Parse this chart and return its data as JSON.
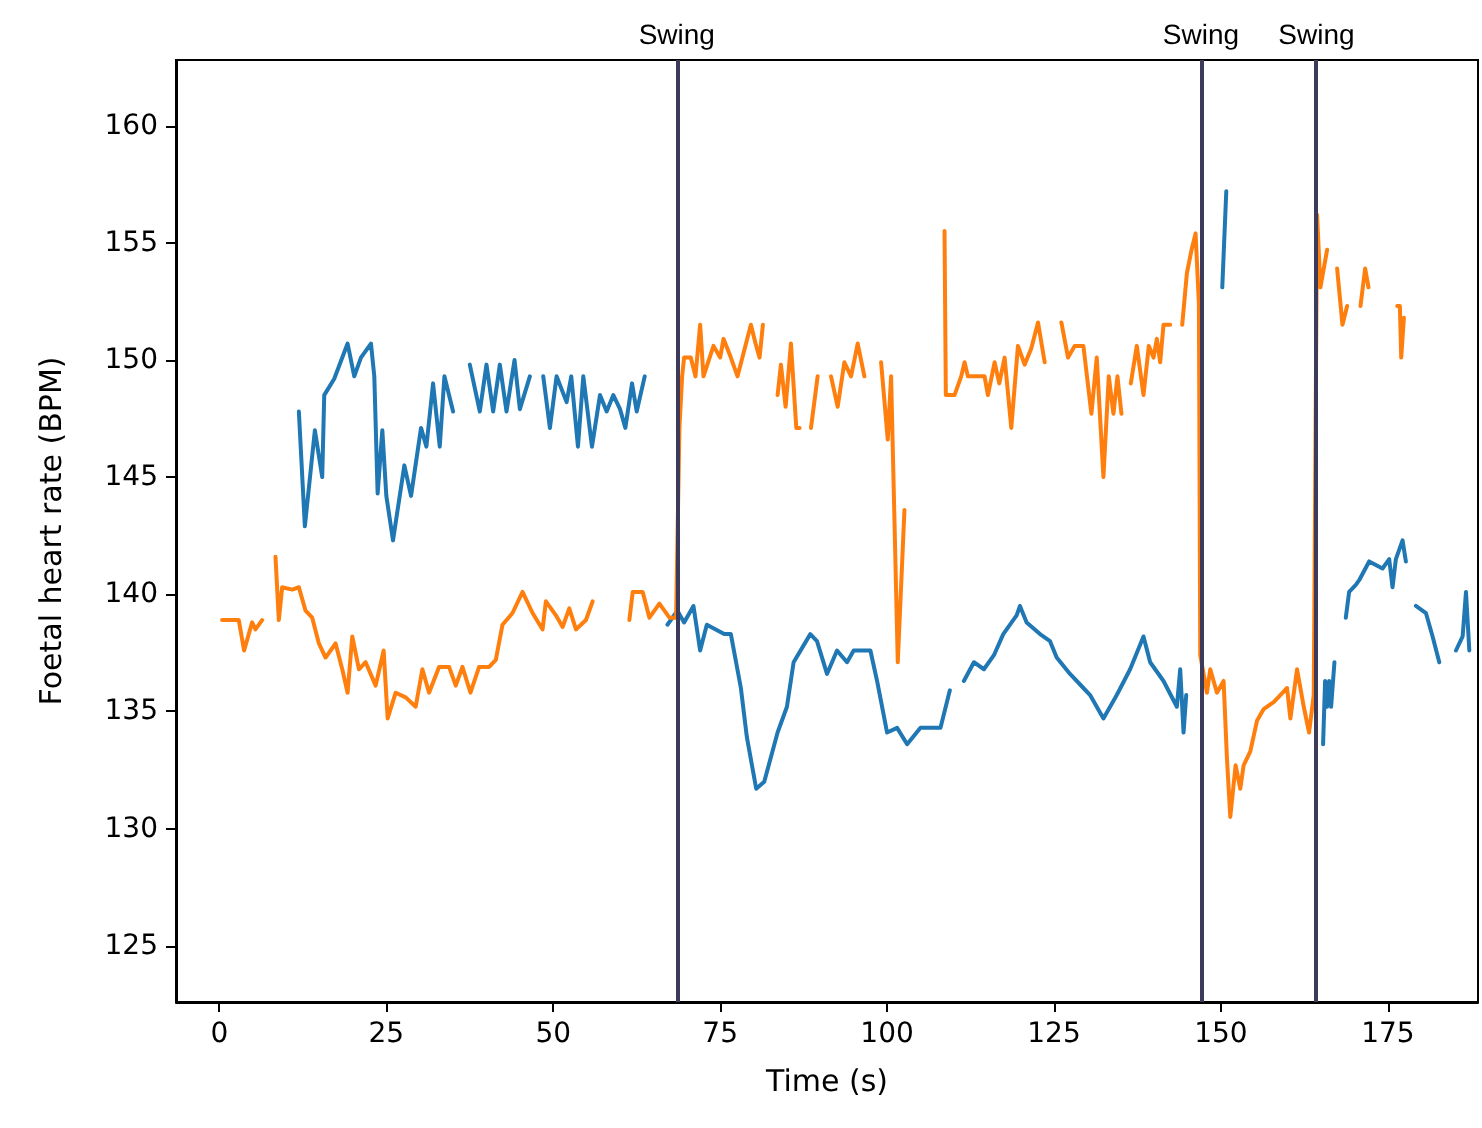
{
  "chart_data": {
    "type": "line",
    "xlabel": "Time (s)",
    "ylabel": "Foetal heart rate (BPM)",
    "xlim": [
      -6.5,
      188.5
    ],
    "xticks": [
      0,
      25,
      50,
      75,
      100,
      125,
      150,
      175
    ],
    "ylim": [
      122.6,
      162.8
    ],
    "yticks": [
      125,
      130,
      135,
      140,
      145,
      150,
      155,
      160
    ],
    "grid": false,
    "marker": "none",
    "line_style": "solid",
    "ref_lines": [
      {
        "axis": "x",
        "value": 68.5,
        "label": "Swing",
        "color": "#3d3b5c"
      },
      {
        "axis": "x",
        "value": 147,
        "label": "Swing",
        "color": "#3d3b5c"
      },
      {
        "axis": "x",
        "value": 164.3,
        "label": "Swing",
        "color": "#3d3b5c"
      }
    ],
    "series": [
      {
        "color": "#1f77b4",
        "x": [
          11.9,
          12.8,
          14.3,
          15.4,
          15.7,
          17.2,
          19.2,
          20.2,
          21.2,
          22.7,
          23.2,
          23.7,
          24.4,
          25,
          26,
          27.7,
          28.7,
          30.2,
          31,
          32,
          33,
          33.7,
          35,
          36.2,
          37.5,
          39,
          40,
          41,
          42,
          43,
          44.2,
          45,
          46.5,
          47.5,
          48.5,
          49.5,
          50.5,
          52,
          52.7,
          53.7,
          54.5,
          55.8,
          57,
          58,
          59,
          60,
          60.8,
          61.8,
          62.5,
          63.7,
          65.4,
          67.1,
          68.6,
          69.6,
          71,
          72,
          73,
          75.6,
          76.6,
          78.1,
          79,
          80.4,
          81.6,
          83.6,
          85,
          86,
          88.5,
          89.5,
          91,
          92.5,
          94,
          95,
          97.5,
          98.5,
          100,
          101.5,
          103,
          105,
          106.5,
          108,
          109.4,
          110.5,
          111.5,
          113,
          114.5,
          116,
          117.4,
          119.4,
          119.9,
          120.9,
          122.9,
          124.4,
          125.4,
          127.4,
          129.4,
          130.4,
          132.4,
          134.4,
          136.4,
          138.4,
          139.4,
          141.4,
          143.4,
          143.9,
          144.4,
          144.8,
          147.5,
          150.2,
          150.8,
          158,
          165.3,
          165.6,
          165.9,
          166.2,
          166.5,
          167,
          167.9,
          168.7,
          169.2,
          170.2,
          170.7,
          172.2,
          174.2,
          175.2,
          175.7,
          176.2,
          177.2,
          177.7,
          178.5,
          179.2,
          180.7,
          181.7,
          182.7,
          184,
          185.2,
          186.2,
          186.7,
          187.2
        ],
        "values": [
          147.8,
          142.9,
          147.0,
          145.0,
          148.5,
          149.2,
          150.7,
          149.3,
          150.1,
          150.7,
          149.3,
          144.3,
          147.0,
          144.2,
          142.3,
          145.5,
          144.2,
          147.1,
          146.3,
          149.0,
          146.3,
          149.3,
          147.8,
          null,
          149.8,
          147.8,
          149.8,
          147.8,
          149.8,
          147.8,
          150.0,
          147.9,
          149.3,
          null,
          149.3,
          147.1,
          149.3,
          148.2,
          149.3,
          146.3,
          149.3,
          146.3,
          148.5,
          147.8,
          148.5,
          147.9,
          147.1,
          149.0,
          147.8,
          149.3,
          null,
          138.7,
          139.3,
          138.8,
          139.5,
          137.6,
          138.7,
          138.3,
          138.3,
          136.0,
          133.9,
          131.7,
          132.0,
          134.1,
          135.2,
          137.1,
          138.3,
          138.0,
          136.6,
          137.6,
          137.1,
          137.6,
          137.6,
          136.3,
          134.1,
          134.3,
          133.6,
          134.3,
          134.3,
          134.3,
          135.9,
          null,
          136.3,
          137.1,
          136.8,
          137.4,
          138.3,
          139.1,
          139.5,
          138.8,
          138.3,
          138.0,
          137.3,
          136.6,
          136.0,
          135.7,
          134.7,
          135.7,
          136.8,
          138.2,
          137.1,
          136.3,
          135.2,
          136.8,
          134.1,
          135.7,
          null,
          153.1,
          157.2,
          null,
          133.6,
          136.3,
          135.2,
          136.3,
          135.2,
          137.1,
          null,
          139.0,
          140.1,
          140.4,
          140.6,
          141.4,
          141.1,
          141.5,
          140.3,
          141.5,
          142.3,
          141.4,
          null,
          139.5,
          139.2,
          138.2,
          137.1,
          null,
          137.6,
          138.2,
          140.1,
          137.6
        ]
      },
      {
        "color": "#ff7f0e",
        "x": [
          0.4,
          2.9,
          3.7,
          4.9,
          5.4,
          6.4,
          7.4,
          8.4,
          8.9,
          9.4,
          10.9,
          11.9,
          12.9,
          13.9,
          14.9,
          15.9,
          17.4,
          18.4,
          19.2,
          19.9,
          20.9,
          21.9,
          23.4,
          24.6,
          25.2,
          26.4,
          27.9,
          29.4,
          30.4,
          31.4,
          32.9,
          34.4,
          35.4,
          36.4,
          37.6,
          38.9,
          40.4,
          41.4,
          42.4,
          43.9,
          45.4,
          46.9,
          48.4,
          48.9,
          50.4,
          51.4,
          52.4,
          53.4,
          54.9,
          55.9,
          58.5,
          61.4,
          61.9,
          63.4,
          64.4,
          65.9,
          67.4,
          68.4,
          68.9,
          69.3,
          69.6,
          70.6,
          71.3,
          72,
          72.5,
          74,
          75,
          75.5,
          76.6,
          77.6,
          78.6,
          79.6,
          80.3,
          80.9,
          81.4,
          82.5,
          83.6,
          84.1,
          84.8,
          85.6,
          86.4,
          86.9,
          87.8,
          88.6,
          89.6,
          90.6,
          91.6,
          92.6,
          93.6,
          94.6,
          95.6,
          96.6,
          97.8,
          99.1,
          100.1,
          100.6,
          101.6,
          102.6,
          105.6,
          108.6,
          108.8,
          110.1,
          111.1,
          111.6,
          112.1,
          114.6,
          115.1,
          116.1,
          116.8,
          117.6,
          118.6,
          119.6,
          120.6,
          121.6,
          122.6,
          123.6,
          124.8,
          126.1,
          127.1,
          128.1,
          129.4,
          130.6,
          131.4,
          132.4,
          133.2,
          133.9,
          134.5,
          135.1,
          135.8,
          136.5,
          137.4,
          138.4,
          139.2,
          139.9,
          140.4,
          140.9,
          141.4,
          142.4,
          143.3,
          144.2,
          144.9,
          145.6,
          146.2,
          146.7,
          146.9,
          147.9,
          148.4,
          149.4,
          150.4,
          150.9,
          151.4,
          152.2,
          152.9,
          153.4,
          154.4,
          155.4,
          156.4,
          157.9,
          158.9,
          159.9,
          160.4,
          161.4,
          162.4,
          163.2,
          163.9,
          164.4,
          164.9,
          165.9,
          166.6,
          167.4,
          168.2,
          168.9,
          169.9,
          170.9,
          171.6,
          172.1,
          174.2,
          176.4,
          176.8,
          177.0,
          177.4
        ],
        "values": [
          138.9,
          138.9,
          137.6,
          138.8,
          138.5,
          138.9,
          null,
          141.6,
          138.9,
          140.3,
          140.2,
          140.3,
          139.3,
          139.0,
          137.9,
          137.3,
          137.9,
          136.8,
          135.8,
          138.2,
          136.8,
          137.1,
          136.1,
          137.6,
          134.7,
          135.8,
          135.6,
          135.2,
          136.8,
          135.8,
          136.9,
          136.9,
          136.1,
          136.9,
          135.8,
          136.9,
          136.9,
          137.2,
          138.7,
          139.2,
          140.1,
          139.2,
          138.5,
          139.7,
          139.1,
          138.6,
          139.4,
          138.5,
          138.9,
          139.7,
          null,
          138.9,
          140.1,
          140.1,
          139.0,
          139.6,
          139.0,
          139.0,
          147.1,
          149.3,
          150.1,
          150.1,
          149.3,
          151.5,
          149.3,
          150.6,
          150.1,
          150.9,
          150.1,
          149.3,
          150.4,
          151.5,
          150.7,
          150.1,
          151.5,
          null,
          148.5,
          149.8,
          148.0,
          150.7,
          147.1,
          147.1,
          null,
          147.1,
          149.3,
          null,
          149.3,
          148.0,
          149.9,
          149.3,
          150.7,
          149.3,
          null,
          149.9,
          146.6,
          149.3,
          137.1,
          143.6,
          null,
          155.5,
          148.5,
          148.5,
          149.3,
          149.9,
          149.3,
          149.3,
          148.5,
          149.9,
          149.0,
          150.1,
          147.1,
          150.6,
          149.8,
          150.5,
          151.6,
          149.9,
          null,
          151.6,
          150.1,
          150.6,
          150.6,
          147.7,
          150.1,
          145.0,
          149.3,
          147.7,
          149.3,
          147.7,
          null,
          149.0,
          150.6,
          148.5,
          150.6,
          150.1,
          150.9,
          149.9,
          151.5,
          151.5,
          null,
          151.5,
          153.7,
          154.7,
          155.4,
          152.4,
          137.4,
          135.8,
          136.8,
          135.8,
          136.3,
          133.0,
          130.5,
          132.7,
          131.7,
          132.7,
          133.3,
          134.6,
          135.1,
          135.4,
          135.7,
          136.0,
          134.7,
          136.8,
          135.2,
          134.1,
          135.7,
          156.2,
          153.1,
          154.7,
          null,
          153.9,
          151.5,
          152.3,
          null,
          152.3,
          153.9,
          153.1,
          null,
          152.3,
          152.3,
          150.1,
          151.8
        ]
      }
    ]
  }
}
